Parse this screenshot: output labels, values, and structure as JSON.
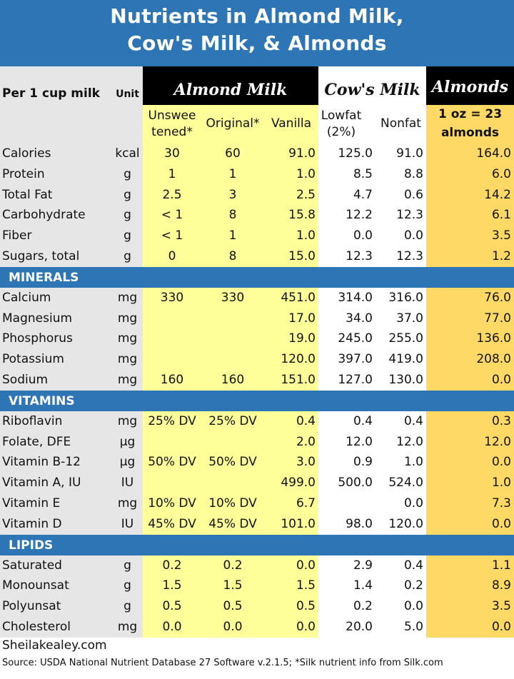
{
  "title": {
    "line1": "Nutrients in Almond Milk,",
    "line2": "Cow's Milk, & Almonds"
  },
  "header": {
    "per_label": "Per 1 cup milk",
    "unit_label": "Unit",
    "almond_milk_group": "Almond Milk",
    "cows_milk_group": "Cow's Milk",
    "almonds_group": "Almonds",
    "columns": {
      "unsweetened": [
        "Unswee",
        "tened*"
      ],
      "original": "Original*",
      "vanilla": "Vanilla",
      "lowfat": [
        "Lowfat",
        "(2%)"
      ],
      "nonfat": "Nonfat",
      "almonds": [
        "1 oz = 23",
        "almonds"
      ]
    }
  },
  "sections": [
    {
      "name": "",
      "rows": [
        {
          "label": "Calories",
          "unit": "kcal",
          "unsw": "30",
          "orig": "60",
          "van": "91.0",
          "low": "125.0",
          "non": "91.0",
          "alm": "164.0"
        },
        {
          "label": "Protein",
          "unit": "g",
          "unsw": "1",
          "orig": "1",
          "van": "1.0",
          "low": "8.5",
          "non": "8.8",
          "alm": "6.0"
        },
        {
          "label": "Total Fat",
          "unit": "g",
          "unsw": "2.5",
          "orig": "3",
          "van": "2.5",
          "low": "4.7",
          "non": "0.6",
          "alm": "14.2"
        },
        {
          "label": "Carbohydrate",
          "unit": "g",
          "unsw": "< 1",
          "orig": "8",
          "van": "15.8",
          "low": "12.2",
          "non": "12.3",
          "alm": "6.1"
        },
        {
          "label": "Fiber",
          "unit": "g",
          "unsw": "< 1",
          "orig": "1",
          "van": "1.0",
          "low": "0.0",
          "non": "0.0",
          "alm": "3.5"
        },
        {
          "label": "Sugars, total",
          "unit": "g",
          "unsw": "0",
          "orig": "8",
          "van": "15.0",
          "low": "12.3",
          "non": "12.3",
          "alm": "1.2"
        }
      ]
    },
    {
      "name": "MINERALS",
      "rows": [
        {
          "label": "Calcium",
          "unit": "mg",
          "unsw": "330",
          "orig": "330",
          "van": "451.0",
          "low": "314.0",
          "non": "316.0",
          "alm": "76.0"
        },
        {
          "label": "Magnesium",
          "unit": "mg",
          "unsw": "",
          "orig": "",
          "van": "17.0",
          "low": "34.0",
          "non": "37.0",
          "alm": "77.0"
        },
        {
          "label": "Phosphorus",
          "unit": "mg",
          "unsw": "",
          "orig": "",
          "van": "19.0",
          "low": "245.0",
          "non": "255.0",
          "alm": "136.0"
        },
        {
          "label": "Potassium",
          "unit": "mg",
          "unsw": "",
          "orig": "",
          "van": "120.0",
          "low": "397.0",
          "non": "419.0",
          "alm": "208.0"
        },
        {
          "label": "Sodium",
          "unit": "mg",
          "unsw": "160",
          "orig": "160",
          "van": "151.0",
          "low": "127.0",
          "non": "130.0",
          "alm": "0.0"
        }
      ]
    },
    {
      "name": "VITAMINS",
      "rows": [
        {
          "label": "Riboflavin",
          "unit": "mg",
          "unsw": "25% DV",
          "orig": "25% DV",
          "van": "0.4",
          "low": "0.4",
          "non": "0.4",
          "alm": "0.3"
        },
        {
          "label": "Folate, DFE",
          "unit": "µg",
          "unsw": "",
          "orig": "",
          "van": "2.0",
          "low": "12.0",
          "non": "12.0",
          "alm": "12.0"
        },
        {
          "label": "Vitamin B-12",
          "unit": "µg",
          "unsw": "50% DV",
          "orig": "50% DV",
          "van": "3.0",
          "low": "0.9",
          "non": "1.0",
          "alm": "0.0"
        },
        {
          "label": "Vitamin A, IU",
          "unit": "IU",
          "unsw": "",
          "orig": "",
          "van": "499.0",
          "low": "500.0",
          "non": "524.0",
          "alm": "1.0"
        },
        {
          "label": "Vitamin E",
          "unit": "mg",
          "unsw": "10% DV",
          "orig": "10% DV",
          "van": "6.7",
          "low": "",
          "non": "0.0",
          "alm": "7.3"
        },
        {
          "label": "Vitamin D",
          "unit": "IU",
          "unsw": "45% DV",
          "orig": "45% DV",
          "van": "101.0",
          "low": "98.0",
          "non": "120.0",
          "alm": "0.0"
        }
      ]
    },
    {
      "name": "LIPIDS",
      "rows": [
        {
          "label": "Saturated",
          "unit": "g",
          "unsw": "0.2",
          "orig": "0.2",
          "van": "0.0",
          "low": "2.9",
          "non": "0.4",
          "alm": "1.1"
        },
        {
          "label": "Monounsat",
          "unit": "g",
          "unsw": "1.5",
          "orig": "1.5",
          "van": "1.5",
          "low": "1.4",
          "non": "0.2",
          "alm": "8.9"
        },
        {
          "label": "Polyunsat",
          "unit": "g",
          "unsw": "0.5",
          "orig": "0.5",
          "van": "0.5",
          "low": "0.2",
          "non": "0.0",
          "alm": "3.5"
        },
        {
          "label": "Cholesterol",
          "unit": "mg",
          "unsw": "0.0",
          "orig": "0.0",
          "van": "0.0",
          "low": "20.0",
          "non": "5.0",
          "alm": "0.0"
        }
      ]
    }
  ],
  "footer": {
    "site": "Sheilakealey.com",
    "source": "Source: USDA National Nutrient Database  27 Software v.2.1.5; *Silk nutrient info from Silk.com"
  },
  "colors": {
    "blue": "#2e75b6",
    "label_bg": "#e6e6e6",
    "almond_milk_bg": "#ffff99",
    "almonds_bg": "#ffd966",
    "black": "#000000"
  }
}
